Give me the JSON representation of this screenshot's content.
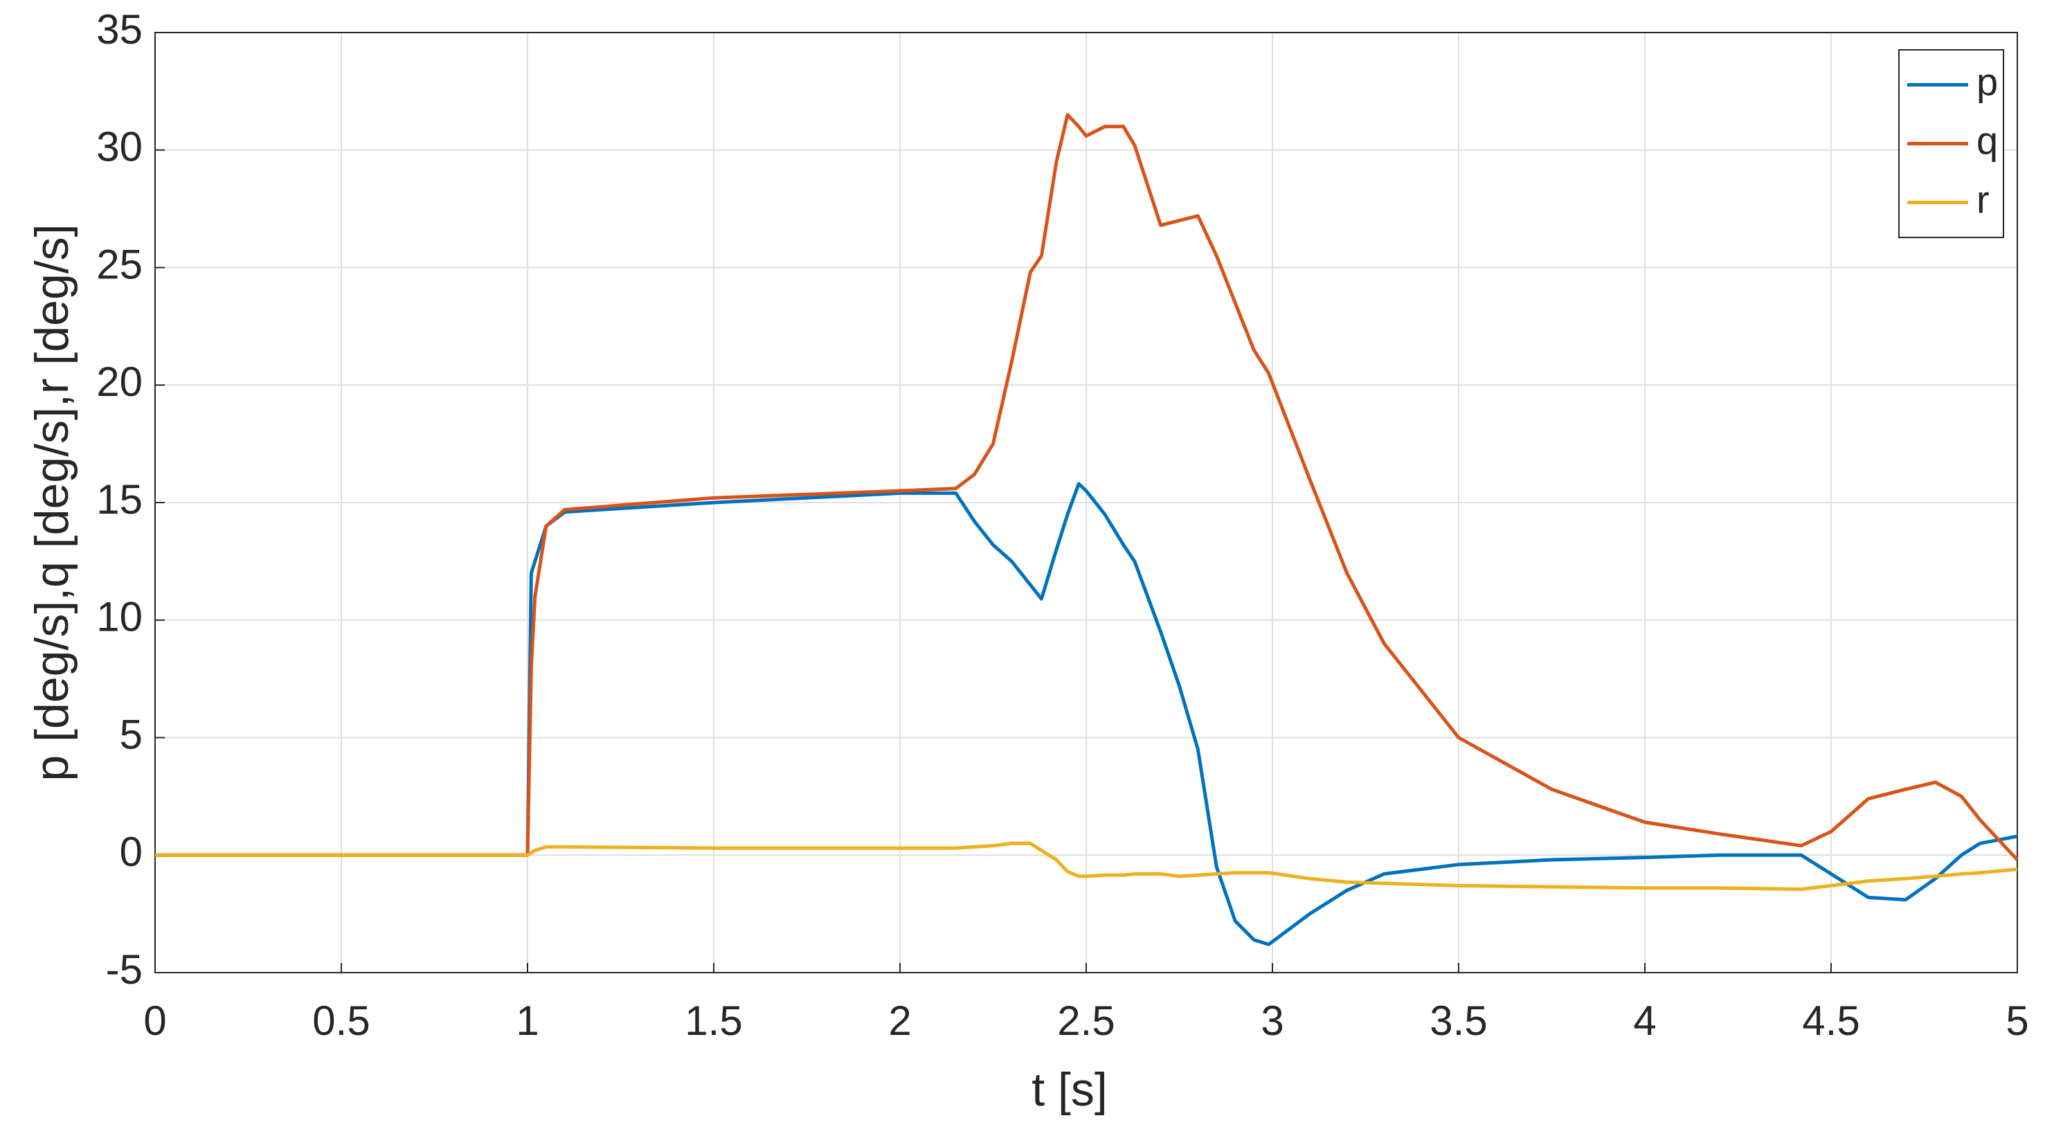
{
  "chart_data": {
    "type": "line",
    "xlabel": "t [s]",
    "ylabel": "p [deg/s],q [deg/s],r [deg/s]",
    "x": [
      0,
      0.5,
      0.99,
      1.0,
      1.01,
      1.02,
      1.05,
      1.1,
      1.5,
      2.0,
      2.15,
      2.2,
      2.25,
      2.3,
      2.35,
      2.38,
      2.42,
      2.45,
      2.48,
      2.5,
      2.55,
      2.6,
      2.63,
      2.7,
      2.75,
      2.8,
      2.85,
      2.9,
      2.95,
      2.99,
      3.1,
      3.2,
      3.3,
      3.5,
      3.75,
      4.0,
      4.2,
      4.42,
      4.5,
      4.6,
      4.7,
      4.78,
      4.85,
      4.9,
      5.0
    ],
    "series": [
      {
        "name": "p",
        "color": "#0072BD",
        "values": [
          0,
          0,
          0,
          0,
          12,
          12.5,
          14,
          14.6,
          15,
          15.4,
          15.4,
          14.2,
          13.2,
          12.5,
          11.5,
          10.9,
          13,
          14.5,
          15.8,
          15.5,
          14.5,
          13.2,
          12.5,
          9.5,
          7.2,
          4.5,
          -0.5,
          -2.8,
          -3.6,
          -3.8,
          -2.5,
          -1.5,
          -0.8,
          -0.4,
          -0.2,
          -0.1,
          0,
          0,
          -0.8,
          -1.8,
          -1.9,
          -1.0,
          0,
          0.5,
          0.8
        ]
      },
      {
        "name": "q",
        "color": "#D95319",
        "values": [
          0,
          0,
          0,
          0,
          8,
          11,
          14,
          14.7,
          15.2,
          15.5,
          15.6,
          16.2,
          17.5,
          21,
          24.8,
          25.5,
          29.5,
          31.5,
          31,
          30.6,
          31,
          31,
          30.2,
          26.8,
          27,
          27.2,
          25.5,
          23.5,
          21.5,
          20.5,
          16,
          12,
          9,
          5,
          2.8,
          1.4,
          0.9,
          0.4,
          1,
          2.4,
          2.8,
          3.1,
          2.5,
          1.5,
          -0.2
        ]
      },
      {
        "name": "r",
        "color": "#EDB120",
        "values": [
          0,
          0,
          0,
          0,
          0.1,
          0.2,
          0.35,
          0.35,
          0.3,
          0.3,
          0.3,
          0.35,
          0.4,
          0.5,
          0.5,
          0.2,
          -0.2,
          -0.7,
          -0.9,
          -0.9,
          -0.85,
          -0.85,
          -0.8,
          -0.8,
          -0.9,
          -0.85,
          -0.8,
          -0.75,
          -0.75,
          -0.75,
          -1,
          -1.15,
          -1.2,
          -1.3,
          -1.35,
          -1.4,
          -1.4,
          -1.45,
          -1.3,
          -1.1,
          -1,
          -0.9,
          -0.8,
          -0.75,
          -0.6
        ]
      }
    ],
    "xlim": [
      0,
      5
    ],
    "xticks": [
      0,
      0.5,
      1,
      1.5,
      2,
      2.5,
      3,
      3.5,
      4,
      4.5,
      5
    ],
    "ylim": [
      -5,
      35
    ],
    "yticks": [
      -5,
      0,
      5,
      10,
      15,
      20,
      25,
      30,
      35
    ],
    "grid": true,
    "legend": "top-right"
  }
}
